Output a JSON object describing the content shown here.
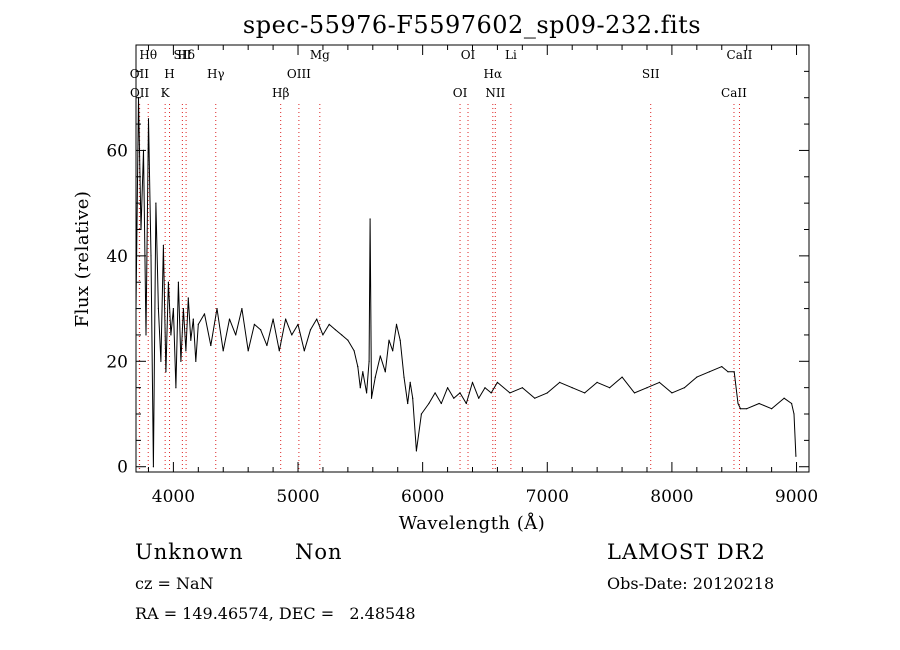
{
  "chart_data": {
    "type": "line",
    "title": "spec-55976-F5597602_sp09-232.fits",
    "xlabel": "Wavelength (Å)",
    "ylabel": "Flux (relative)",
    "xlim": [
      3700,
      9100
    ],
    "ylim": [
      -1,
      80
    ],
    "xticks": [
      4000,
      5000,
      6000,
      7000,
      8000,
      9000
    ],
    "yticks": [
      0,
      20,
      40,
      60
    ],
    "grid": false,
    "series": [
      {
        "color": "#000000",
        "x": [
          3700,
          3720,
          3740,
          3760,
          3780,
          3800,
          3820,
          3840,
          3860,
          3880,
          3900,
          3920,
          3940,
          3960,
          3980,
          4000,
          4020,
          4040,
          4060,
          4080,
          4100,
          4120,
          4140,
          4160,
          4180,
          4200,
          4250,
          4300,
          4350,
          4400,
          4450,
          4500,
          4550,
          4600,
          4650,
          4700,
          4750,
          4800,
          4850,
          4900,
          4950,
          5000,
          5050,
          5100,
          5150,
          5200,
          5250,
          5300,
          5350,
          5400,
          5450,
          5480,
          5500,
          5520,
          5550,
          5570,
          5578,
          5590,
          5620,
          5660,
          5700,
          5730,
          5760,
          5790,
          5820,
          5850,
          5880,
          5900,
          5920,
          5950,
          5990,
          6050,
          6100,
          6150,
          6200,
          6250,
          6300,
          6350,
          6400,
          6450,
          6500,
          6550,
          6600,
          6700,
          6800,
          6900,
          7000,
          7100,
          7200,
          7300,
          7400,
          7500,
          7600,
          7700,
          7800,
          7900,
          8000,
          8100,
          8200,
          8300,
          8400,
          8450,
          8500,
          8530,
          8550,
          8600,
          8700,
          8800,
          8900,
          8960,
          8980,
          8995
        ],
        "y": [
          30,
          70,
          45,
          60,
          25,
          66,
          40,
          0,
          50,
          30,
          20,
          42,
          18,
          35,
          25,
          30,
          15,
          35,
          20,
          30,
          22,
          32,
          24,
          28,
          20,
          27,
          29,
          23,
          30,
          22,
          28,
          25,
          30,
          22,
          27,
          26,
          23,
          28,
          22,
          28,
          25,
          27,
          22,
          26,
          28,
          25,
          27,
          26,
          25,
          24,
          22,
          19,
          15,
          18,
          14,
          20,
          47,
          13,
          17,
          21,
          18,
          24,
          22,
          27,
          24,
          17,
          12,
          16,
          13,
          3,
          10,
          12,
          14,
          12,
          15,
          13,
          14,
          12,
          16,
          13,
          15,
          14,
          16,
          14,
          15,
          13,
          14,
          16,
          15,
          14,
          16,
          15,
          17,
          14,
          15,
          16,
          14,
          15,
          17,
          18,
          19,
          18,
          18,
          12,
          11,
          11,
          12,
          11,
          13,
          12,
          10,
          2
        ]
      }
    ],
    "line_markers": [
      {
        "label": "Hθ",
        "x": 3798
      },
      {
        "label": "OII",
        "x": 3727
      },
      {
        "label": "OII",
        "x": 3729
      },
      {
        "label": "SII",
        "x": 4072
      },
      {
        "label": "H",
        "x": 3969
      },
      {
        "label": "K",
        "x": 3934
      },
      {
        "label": "Hδ",
        "x": 4102
      },
      {
        "label": "Hγ",
        "x": 4340
      },
      {
        "label": "Hβ",
        "x": 4861
      },
      {
        "label": "Mg",
        "x": 5175
      },
      {
        "label": "OIII",
        "x": 5007
      },
      {
        "label": "OI",
        "x": 6300
      },
      {
        "label": "OI",
        "x": 6364
      },
      {
        "label": "Hα",
        "x": 6563
      },
      {
        "label": "NII",
        "x": 6583
      },
      {
        "label": "Li",
        "x": 6708
      },
      {
        "label": "SII",
        "x": 7830
      },
      {
        "label": "CaII",
        "x": 8498
      },
      {
        "label": "CaII",
        "x": 8542
      }
    ]
  },
  "info": {
    "class": "Unknown",
    "subclass": "Non",
    "survey": "LAMOST DR2",
    "redshift": "cz = NaN",
    "obs_date": "Obs-Date: 20120218",
    "coords": "RA = 149.46574, DEC =   2.48548"
  }
}
